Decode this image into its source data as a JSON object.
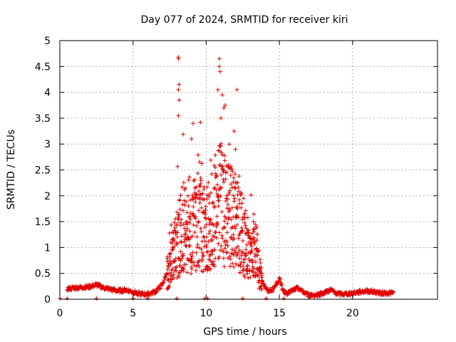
{
  "chart_data": {
    "type": "scatter",
    "title": "Day 077 of 2024, SRMTID for receiver kiri",
    "xlabel": "GPS time / hours",
    "ylabel": "SRMTID / TECUs",
    "xlim": [
      0,
      25.8
    ],
    "ylim": [
      0,
      5
    ],
    "grid": true,
    "marker": "+",
    "color": "#e00000",
    "x_ticks": [
      0,
      5,
      10,
      15,
      20
    ],
    "x_tick_labels": [
      "0",
      "5",
      "10",
      "15",
      "20"
    ],
    "y_ticks": [
      0,
      0.5,
      1,
      1.5,
      2,
      2.5,
      3,
      3.5,
      4,
      4.5,
      5
    ],
    "y_tick_labels": [
      "0",
      "0.5",
      "1",
      "1.5",
      "2",
      "2.5",
      "3",
      "3.5",
      "4",
      "4.5",
      "5"
    ],
    "series": [
      {
        "name": "SRMTID",
        "x_start": 0.5,
        "x_end": 22.8,
        "profile_x": [
          0.0,
          0.5,
          1.0,
          2.0,
          2.5,
          3.0,
          4.0,
          4.5,
          5.0,
          5.5,
          6.0,
          6.5,
          7.0,
          7.3,
          7.6,
          7.9,
          8.2,
          8.5,
          9.0,
          9.5,
          10.0,
          10.5,
          11.0,
          11.5,
          12.0,
          12.5,
          13.0,
          13.3,
          13.6,
          13.9,
          14.2,
          14.6,
          15.0,
          15.3,
          15.6,
          16.0,
          16.3,
          16.6,
          17.0,
          17.5,
          18.0,
          18.5,
          19.0,
          19.5,
          20.0,
          20.5,
          21.0,
          21.5,
          22.0,
          22.8
        ],
        "profile_y": [
          0.12,
          0.2,
          0.22,
          0.24,
          0.28,
          0.22,
          0.16,
          0.18,
          0.14,
          0.1,
          0.1,
          0.14,
          0.28,
          0.5,
          0.75,
          1.0,
          1.3,
          1.5,
          1.4,
          1.55,
          1.35,
          1.7,
          1.9,
          1.65,
          1.55,
          1.2,
          0.9,
          1.1,
          0.6,
          0.3,
          0.15,
          0.2,
          0.4,
          0.15,
          0.12,
          0.18,
          0.22,
          0.14,
          0.08,
          0.08,
          0.12,
          0.18,
          0.1,
          0.1,
          0.12,
          0.14,
          0.16,
          0.14,
          0.12,
          0.12
        ],
        "highlight_points": [
          {
            "x": 8.1,
            "y": 4.68
          },
          {
            "x": 8.1,
            "y": 4.65
          },
          {
            "x": 8.15,
            "y": 4.15
          },
          {
            "x": 8.1,
            "y": 4.05
          },
          {
            "x": 8.15,
            "y": 3.85
          },
          {
            "x": 8.1,
            "y": 3.55
          },
          {
            "x": 9.1,
            "y": 3.4
          },
          {
            "x": 9.6,
            "y": 3.42
          },
          {
            "x": 9.0,
            "y": 3.1
          },
          {
            "x": 10.9,
            "y": 4.65
          },
          {
            "x": 10.9,
            "y": 4.5
          },
          {
            "x": 10.95,
            "y": 4.4
          },
          {
            "x": 10.8,
            "y": 4.05
          },
          {
            "x": 11.1,
            "y": 3.95
          },
          {
            "x": 11.2,
            "y": 3.7
          },
          {
            "x": 11.0,
            "y": 3.5
          },
          {
            "x": 11.3,
            "y": 3.75
          },
          {
            "x": 12.1,
            "y": 4.05
          },
          {
            "x": 11.9,
            "y": 3.25
          },
          {
            "x": 12.0,
            "y": 2.9
          }
        ]
      }
    ]
  }
}
